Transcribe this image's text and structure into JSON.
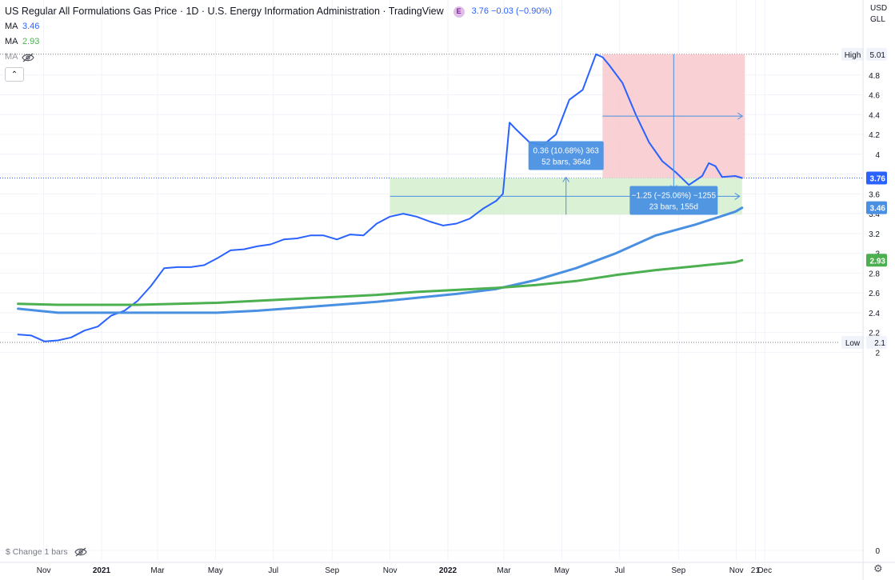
{
  "legend": {
    "title": "US Regular All Formulations Gas Price · 1D · U.S. Energy Information Administration · TradingView",
    "badge": "E",
    "quote": "3.76 −0.03 (−0.90%)",
    "ma_label": "MA",
    "ma1_value": "3.46",
    "ma2_value": "2.93",
    "collapse_glyph": "⌃"
  },
  "units": {
    "currency": "USD",
    "unit": "GLL"
  },
  "bottom_label": "$ Change 1 bars",
  "colors": {
    "price": "#2962ff",
    "ma1": "#4a90e2",
    "ma2": "#4caf50",
    "measure_down_fill": "#f8c8cc",
    "measure_up_fill": "#d4eecf",
    "measure_box": "#4a90e2",
    "grid": "#f0f3fa",
    "axis_text": "#131722"
  },
  "icons": {
    "eye_off": "eye-off-icon",
    "settings": "gear-icon"
  },
  "chart_data": {
    "type": "line",
    "title": "US Regular All Formulations Gas Price",
    "ylim": [
      0,
      5.1
    ],
    "y_ticks": [
      0,
      2,
      2.2,
      2.4,
      2.6,
      2.8,
      3,
      3.2,
      3.4,
      3.6,
      3.8,
      4,
      4.2,
      4.4,
      4.6,
      4.8
    ],
    "x_ticks": [
      {
        "label": "Nov",
        "date": "2020-11-01"
      },
      {
        "label": "2021",
        "date": "2021-01-01",
        "bold": true
      },
      {
        "label": "Mar",
        "date": "2021-03-01"
      },
      {
        "label": "May",
        "date": "2021-05-01"
      },
      {
        "label": "Jul",
        "date": "2021-07-01"
      },
      {
        "label": "Sep",
        "date": "2021-09-01"
      },
      {
        "label": "Nov",
        "date": "2021-11-01"
      },
      {
        "label": "2022",
        "date": "2022-01-01",
        "bold": true
      },
      {
        "label": "Mar",
        "date": "2022-03-01"
      },
      {
        "label": "May",
        "date": "2022-05-01"
      },
      {
        "label": "Jul",
        "date": "2022-07-01"
      },
      {
        "label": "Sep",
        "date": "2022-09-01"
      },
      {
        "label": "Nov",
        "date": "2022-11-01"
      },
      {
        "label": "21",
        "date": "2022-11-21"
      },
      {
        "label": "Dec",
        "date": "2022-12-01"
      }
    ],
    "series": [
      {
        "name": "US Regular All Formulations Gas Price",
        "x": [
          "2020-10-05",
          "2020-10-19",
          "2020-11-02",
          "2020-11-16",
          "2020-11-30",
          "2020-12-14",
          "2020-12-28",
          "2021-01-11",
          "2021-01-25",
          "2021-02-08",
          "2021-02-22",
          "2021-03-08",
          "2021-03-22",
          "2021-04-05",
          "2021-04-19",
          "2021-05-03",
          "2021-05-17",
          "2021-05-31",
          "2021-06-14",
          "2021-06-28",
          "2021-07-12",
          "2021-07-26",
          "2021-08-09",
          "2021-08-23",
          "2021-09-06",
          "2021-09-20",
          "2021-10-04",
          "2021-10-18",
          "2021-11-01",
          "2021-11-15",
          "2021-11-29",
          "2021-12-13",
          "2021-12-27",
          "2022-01-10",
          "2022-01-24",
          "2022-02-07",
          "2022-02-21",
          "2022-02-28",
          "2022-03-07",
          "2022-03-14",
          "2022-03-28",
          "2022-04-11",
          "2022-04-25",
          "2022-05-09",
          "2022-05-23",
          "2022-06-06",
          "2022-06-13",
          "2022-06-20",
          "2022-07-04",
          "2022-07-18",
          "2022-08-01",
          "2022-08-15",
          "2022-08-29",
          "2022-09-12",
          "2022-09-26",
          "2022-10-03",
          "2022-10-10",
          "2022-10-17",
          "2022-10-31",
          "2022-11-07"
        ],
        "values": [
          2.18,
          2.17,
          2.11,
          2.12,
          2.15,
          2.22,
          2.26,
          2.37,
          2.42,
          2.52,
          2.67,
          2.85,
          2.86,
          2.86,
          2.88,
          2.95,
          3.03,
          3.04,
          3.07,
          3.09,
          3.14,
          3.15,
          3.18,
          3.18,
          3.14,
          3.19,
          3.18,
          3.3,
          3.37,
          3.4,
          3.37,
          3.32,
          3.28,
          3.3,
          3.35,
          3.45,
          3.53,
          3.6,
          4.32,
          4.25,
          4.12,
          4.09,
          4.2,
          4.55,
          4.65,
          5.01,
          4.98,
          4.9,
          4.72,
          4.4,
          4.12,
          3.93,
          3.82,
          3.69,
          3.78,
          3.91,
          3.88,
          3.77,
          3.78,
          3.76
        ]
      },
      {
        "name": "MA",
        "x": [
          "2020-10-05",
          "2020-11-16",
          "2020-12-28",
          "2021-02-08",
          "2021-03-22",
          "2021-05-03",
          "2021-06-14",
          "2021-07-26",
          "2021-09-06",
          "2021-10-18",
          "2021-11-29",
          "2022-01-10",
          "2022-02-21",
          "2022-04-04",
          "2022-05-16",
          "2022-06-27",
          "2022-08-08",
          "2022-09-19",
          "2022-10-31",
          "2022-11-07"
        ],
        "values": [
          2.44,
          2.4,
          2.4,
          2.4,
          2.4,
          2.4,
          2.42,
          2.45,
          2.48,
          2.51,
          2.55,
          2.59,
          2.64,
          2.73,
          2.85,
          3.0,
          3.18,
          3.29,
          3.42,
          3.46
        ]
      },
      {
        "name": "MA",
        "x": [
          "2020-10-05",
          "2020-11-16",
          "2020-12-28",
          "2021-02-08",
          "2021-03-22",
          "2021-05-03",
          "2021-06-14",
          "2021-07-26",
          "2021-09-06",
          "2021-10-18",
          "2021-11-29",
          "2022-01-10",
          "2022-02-21",
          "2022-04-04",
          "2022-05-16",
          "2022-06-27",
          "2022-08-08",
          "2022-09-19",
          "2022-10-31",
          "2022-11-07"
        ],
        "values": [
          2.49,
          2.48,
          2.48,
          2.48,
          2.49,
          2.5,
          2.52,
          2.54,
          2.56,
          2.58,
          2.61,
          2.63,
          2.65,
          2.68,
          2.72,
          2.78,
          2.83,
          2.87,
          2.91,
          2.93
        ]
      }
    ],
    "price_labels": [
      {
        "value": 5.01,
        "text": "5.01",
        "tag": "High",
        "style": "flat"
      },
      {
        "value": 3.76,
        "text": "3.76",
        "style": "price"
      },
      {
        "value": 3.46,
        "text": "3.46",
        "style": "ma1"
      },
      {
        "value": 2.93,
        "text": "2.93",
        "style": "ma2"
      },
      {
        "value": 2.1,
        "text": "2.1",
        "tag": "Low",
        "style": "flat"
      }
    ],
    "annotations": [
      {
        "kind": "measure-up",
        "x_from": "2021-11-01",
        "x_to": "2022-11-07",
        "y_from": 3.39,
        "y_to": 3.76,
        "label_line1": "0.36 (10.68%) 363",
        "label_line2": "52 bars, 364d"
      },
      {
        "kind": "measure-down",
        "x_from": "2022-06-13",
        "x_to": "2022-11-10",
        "y_from": 5.01,
        "y_to": 3.76,
        "label_line1": "−1.25 (−25.06%) −1255",
        "label_line2": "23 bars, 155d"
      }
    ]
  }
}
